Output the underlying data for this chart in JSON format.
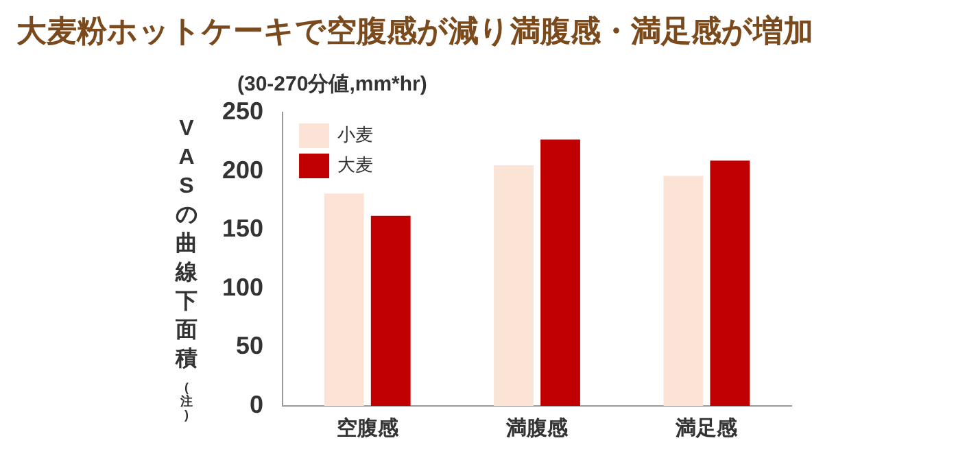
{
  "chart_data": {
    "type": "bar",
    "title": "大麦粉ホットケーキで空腹感が減り満腹感・満足感が増加",
    "subtitle": "(30-270分値,mm*hr)",
    "ylabel": "VASの曲線下面積(注)",
    "categories": [
      "空腹感",
      "満腹感",
      "満足感"
    ],
    "series": [
      {
        "name": "小麦",
        "color": "#fbe3d6",
        "values": [
          181,
          205,
          196
        ]
      },
      {
        "name": "大麦",
        "color": "#c00000",
        "values": [
          162,
          227,
          209
        ]
      }
    ],
    "ylim": [
      0,
      250
    ],
    "yticks": [
      0,
      50,
      100,
      150,
      200,
      250
    ],
    "grid": false,
    "legend": "top left"
  }
}
